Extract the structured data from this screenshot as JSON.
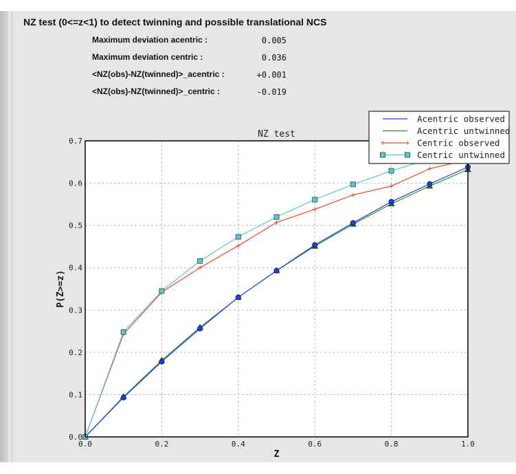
{
  "header": {
    "title": "NZ test (0<=z<1) to detect twinning and possible translational NCS",
    "stats": [
      {
        "label": "Maximum deviation acentric :",
        "value": "0.005"
      },
      {
        "label": "Maximum deviation centric :",
        "value": "0.036"
      },
      {
        "label": "<NZ(obs)-NZ(twinned)>_acentric :",
        "value": "+0.001"
      },
      {
        "label": "<NZ(obs)-NZ(twinned)>_centric :",
        "value": "-0.019"
      }
    ]
  },
  "chart_data": {
    "type": "line",
    "title": "NZ test",
    "xlabel": "Z",
    "ylabel": "P(Z>=z)",
    "xlim": [
      0,
      1.0
    ],
    "ylim": [
      0,
      0.7
    ],
    "xticks": [
      "0.0",
      "0.2",
      "0.4",
      "0.6",
      "0.8",
      "1.0"
    ],
    "yticks": [
      "0.0",
      "0.1",
      "0.2",
      "0.3",
      "0.4",
      "0.5",
      "0.6",
      "0.7"
    ],
    "grid": true,
    "legend": "top-right",
    "x": [
      0,
      0.1,
      0.2,
      0.3,
      0.4,
      0.5,
      0.6,
      0.7,
      0.8,
      0.9,
      1.0
    ],
    "series": [
      {
        "name": "Acentric observed",
        "color": "#1f3cff",
        "marker": "circle",
        "values": [
          0,
          0.093,
          0.178,
          0.256,
          0.33,
          0.393,
          0.454,
          0.506,
          0.556,
          0.598,
          0.638
        ]
      },
      {
        "name": "Acentric untwinned",
        "color": "#2e8b1e",
        "marker": "triangle",
        "values": [
          0,
          0.095,
          0.181,
          0.259,
          0.33,
          0.393,
          0.451,
          0.503,
          0.551,
          0.593,
          0.632
        ]
      },
      {
        "name": "Centric observed",
        "color": "#f04a2a",
        "marker": "plus",
        "values": [
          0,
          0.243,
          0.342,
          0.4,
          0.452,
          0.507,
          0.538,
          0.572,
          0.593,
          0.634,
          0.655
        ]
      },
      {
        "name": "Centric untwinned",
        "color": "#5cc8c8",
        "marker": "square",
        "values": [
          0,
          0.248,
          0.345,
          0.416,
          0.473,
          0.52,
          0.561,
          0.597,
          0.629,
          0.657,
          0.683
        ]
      }
    ]
  }
}
